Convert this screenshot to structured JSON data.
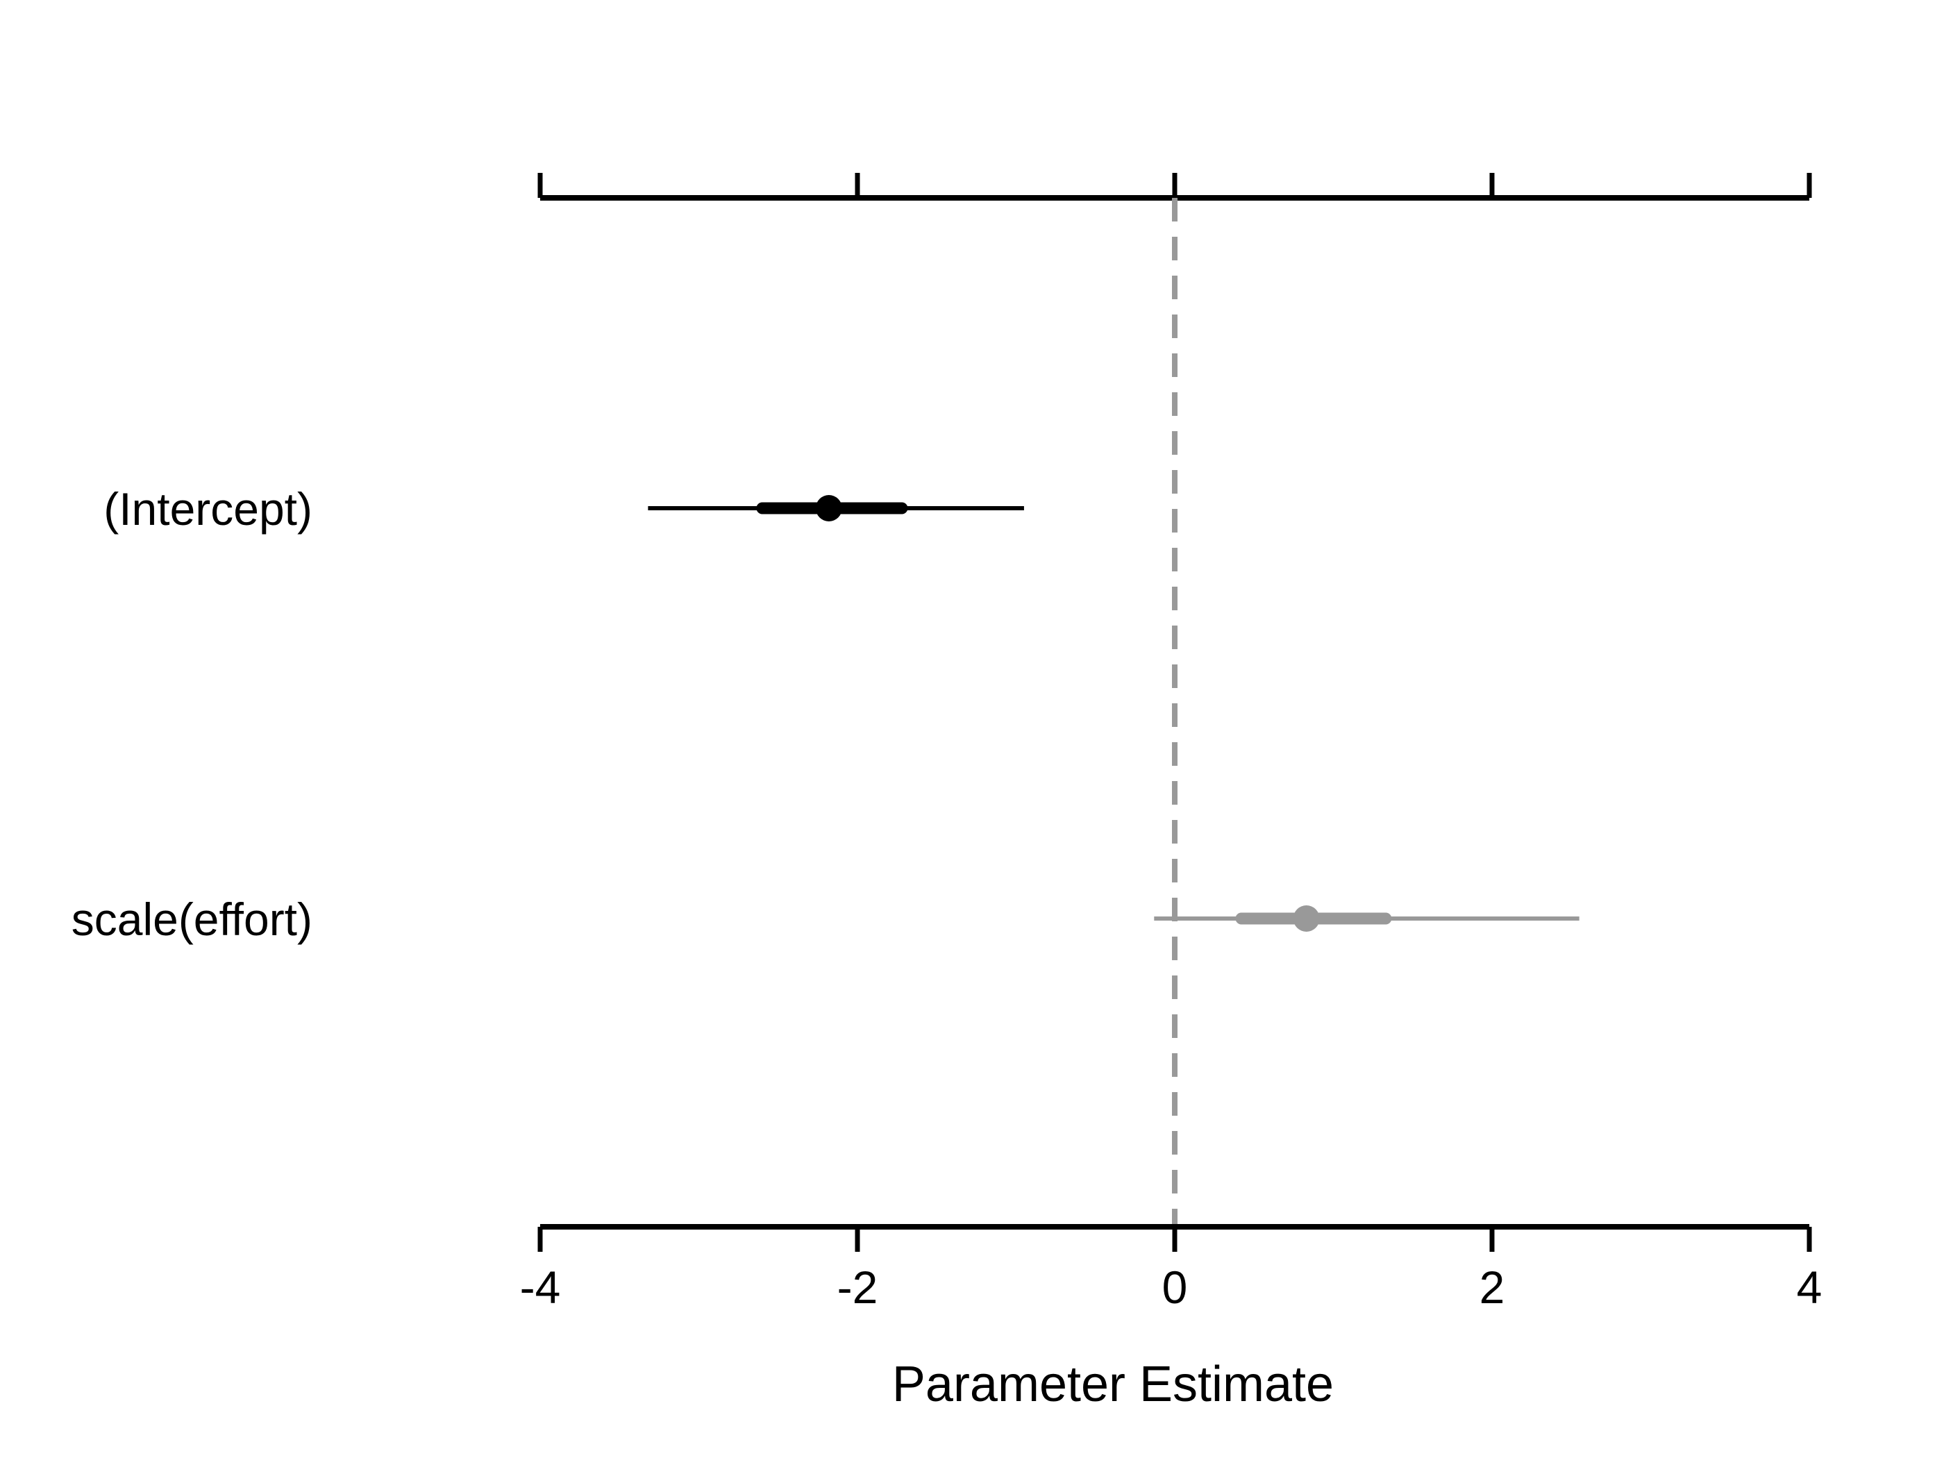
{
  "chart_data": {
    "type": "interval",
    "title": "",
    "xlabel": "Parameter Estimate",
    "ylabel": "",
    "xlim": [
      -4,
      4
    ],
    "x_ticks": [
      -4,
      -2,
      0,
      2,
      4
    ],
    "x_tick_labels": [
      "-4",
      "-2",
      "0",
      "2",
      "4"
    ],
    "reference_line": {
      "x": 0,
      "style": "dashed",
      "color": "#999999"
    },
    "grid": false,
    "legend": "none",
    "categories": [
      "(Intercept)",
      "scale(effort)"
    ],
    "estimates": [
      {
        "label": "(Intercept)",
        "estimate": -2.18,
        "inner_interval": [
          -2.6,
          -1.72
        ],
        "outer_interval": [
          -3.32,
          -0.95
        ],
        "color": "#000000"
      },
      {
        "label": "scale(effort)",
        "estimate": 0.83,
        "inner_interval": [
          0.42,
          1.33
        ],
        "outer_interval": [
          -0.13,
          2.55
        ],
        "color": "#999999"
      }
    ]
  }
}
